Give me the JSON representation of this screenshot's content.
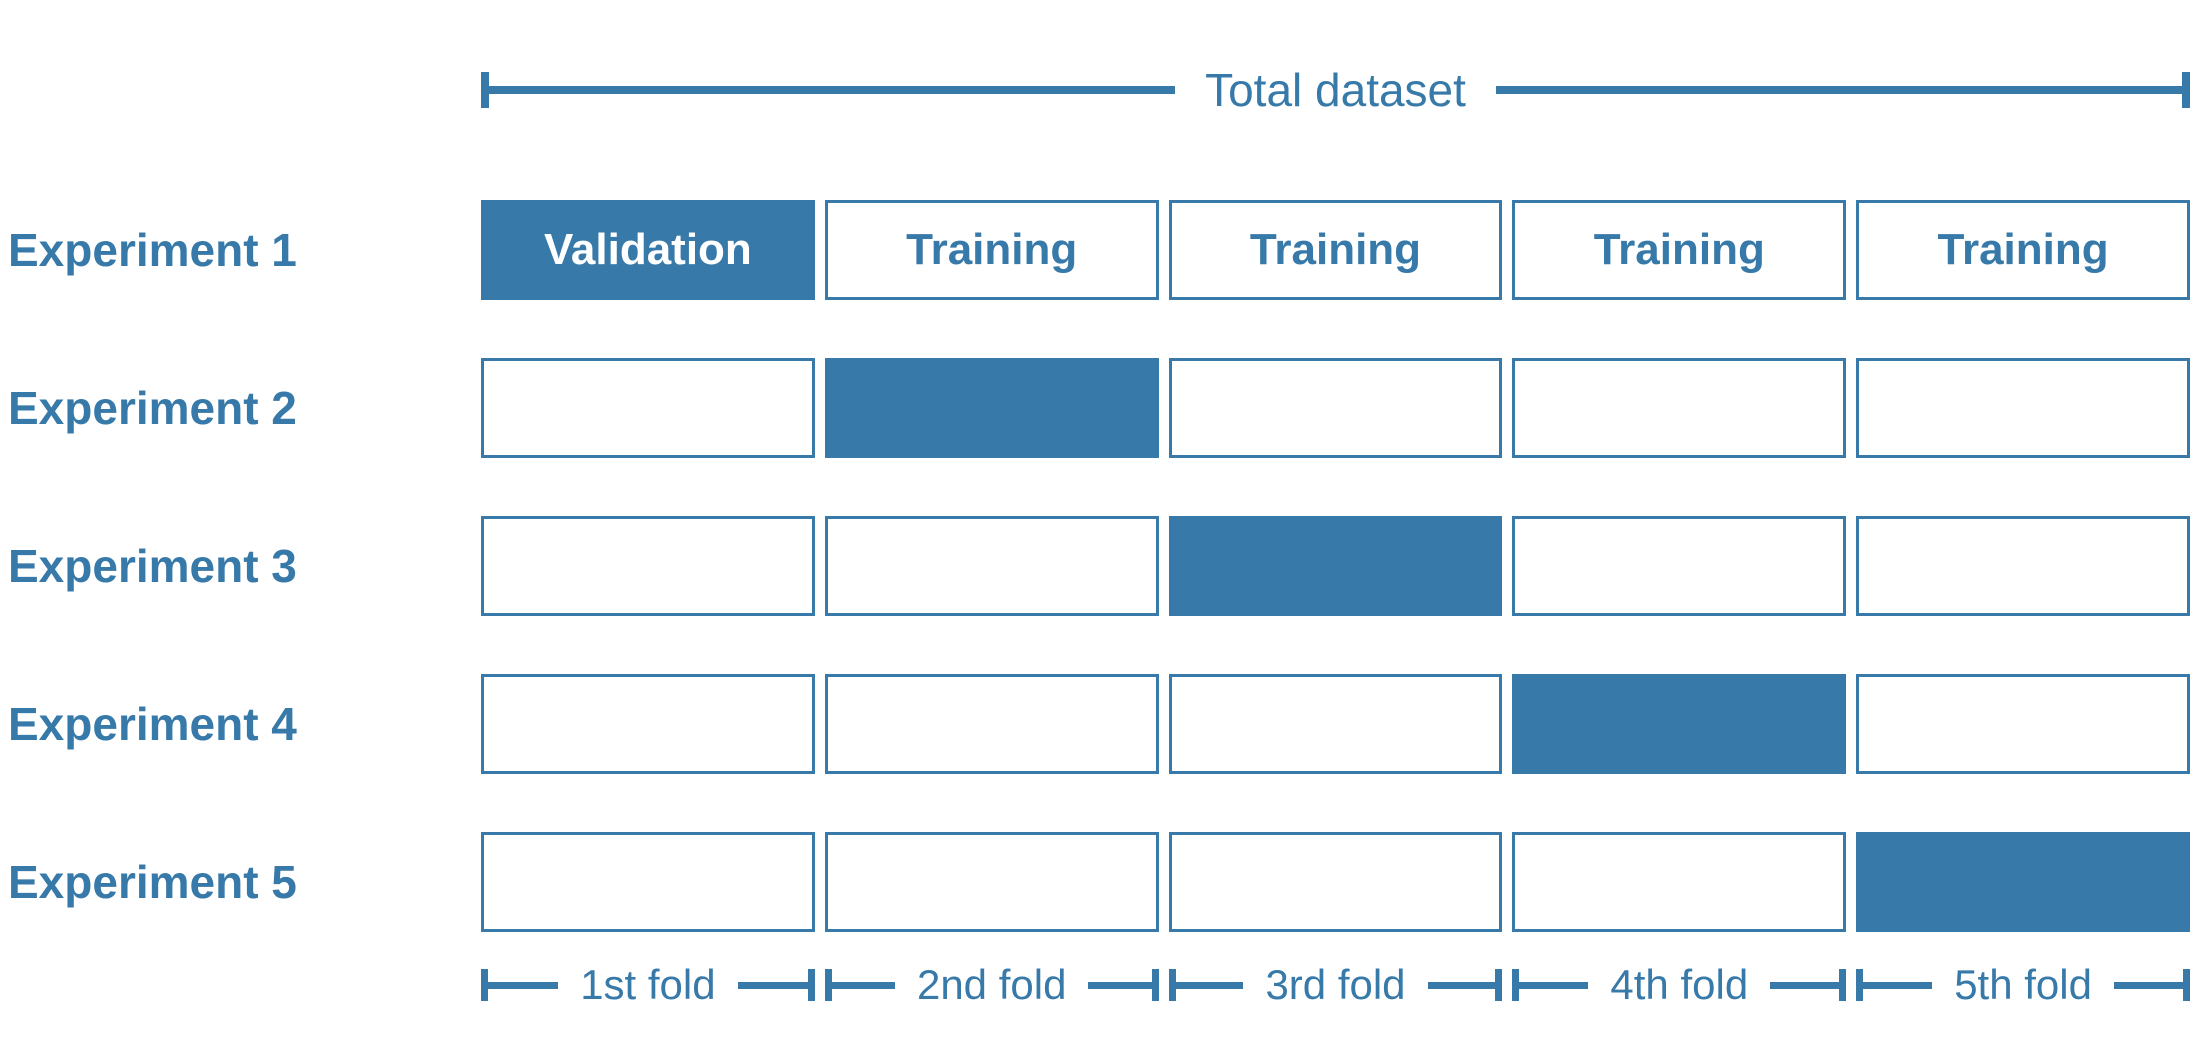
{
  "title": "Total dataset",
  "accent_color": "#3779A8",
  "experiments": [
    {
      "label": "Experiment 1",
      "validation_fold": 1,
      "cells": [
        "Validation",
        "Training",
        "Training",
        "Training",
        "Training"
      ]
    },
    {
      "label": "Experiment 2",
      "validation_fold": 2,
      "cells": [
        "",
        "",
        "",
        "",
        ""
      ]
    },
    {
      "label": "Experiment 3",
      "validation_fold": 3,
      "cells": [
        "",
        "",
        "",
        "",
        ""
      ]
    },
    {
      "label": "Experiment 4",
      "validation_fold": 4,
      "cells": [
        "",
        "",
        "",
        "",
        ""
      ]
    },
    {
      "label": "Experiment 5",
      "validation_fold": 5,
      "cells": [
        "",
        "",
        "",
        "",
        ""
      ]
    }
  ],
  "folds": [
    "1st fold",
    "2nd fold",
    "3rd fold",
    "4th fold",
    "5th fold"
  ]
}
